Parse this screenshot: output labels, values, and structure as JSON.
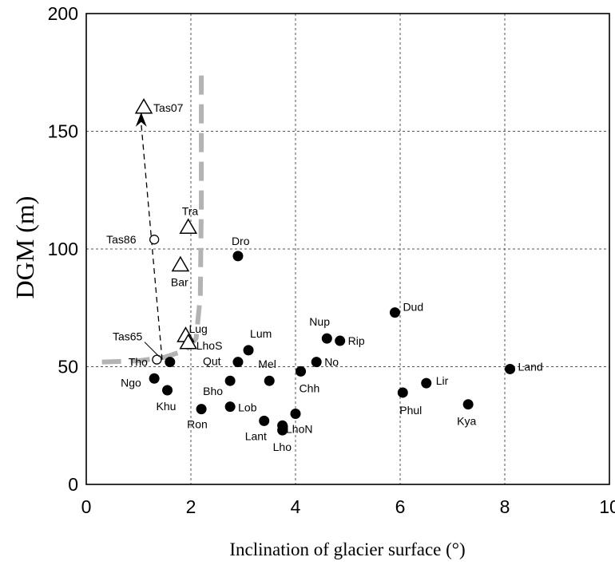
{
  "chart_data": {
    "type": "scatter",
    "xlabel": "Inclination of glacier surface (°)",
    "ylabel": "DGM (m)",
    "xlim": [
      0,
      10
    ],
    "ylim": [
      0,
      200
    ],
    "x_ticks": [
      "0",
      "2",
      "4",
      "6",
      "8",
      "10"
    ],
    "y_ticks": [
      "0",
      "50",
      "100",
      "150",
      "200"
    ],
    "grid": true,
    "series": [
      {
        "marker": "filled-circle",
        "points": [
          {
            "label": "Dro",
            "x": 2.9,
            "y": 97
          },
          {
            "label": "Dud",
            "x": 5.9,
            "y": 73
          },
          {
            "label": "Nup",
            "x": 4.6,
            "y": 62
          },
          {
            "label": "Rip",
            "x": 4.85,
            "y": 61
          },
          {
            "label": "Lum",
            "x": 3.1,
            "y": 57
          },
          {
            "label": "No",
            "x": 4.4,
            "y": 52
          },
          {
            "label": "Qut",
            "x": 2.9,
            "y": 52
          },
          {
            "label": "Tho",
            "x": 1.6,
            "y": 52
          },
          {
            "label": "Mel",
            "x": 3.5,
            "y": 44
          },
          {
            "label": "Chh",
            "x": 4.1,
            "y": 48
          },
          {
            "label": "Land",
            "x": 8.1,
            "y": 49
          },
          {
            "label": "Lir",
            "x": 6.5,
            "y": 43
          },
          {
            "label": "Ngo",
            "x": 1.3,
            "y": 45
          },
          {
            "label": "Bho",
            "x": 2.75,
            "y": 44
          },
          {
            "label": "Khu",
            "x": 1.55,
            "y": 40
          },
          {
            "label": "Phul",
            "x": 6.05,
            "y": 39
          },
          {
            "label": "Kya",
            "x": 7.3,
            "y": 34
          },
          {
            "label": "Lob",
            "x": 2.75,
            "y": 33
          },
          {
            "label": "Ron",
            "x": 2.2,
            "y": 32
          },
          {
            "label": "Lant",
            "x": 3.4,
            "y": 27
          },
          {
            "label": "LhoN",
            "x": 4.0,
            "y": 30
          },
          {
            "label": "",
            "x": 3.75,
            "y": 25
          },
          {
            "label": "Lho",
            "x": 3.75,
            "y": 23
          }
        ]
      },
      {
        "marker": "open-triangle",
        "points": [
          {
            "label": "Tas07",
            "x": 1.1,
            "y": 160
          },
          {
            "label": "Tra",
            "x": 1.95,
            "y": 109
          },
          {
            "label": "Bar",
            "x": 1.8,
            "y": 93
          },
          {
            "label": "Lug",
            "x": 1.9,
            "y": 63
          },
          {
            "label": "LhoS",
            "x": 1.95,
            "y": 60
          }
        ]
      },
      {
        "marker": "open-circle",
        "points": [
          {
            "label": "Tas86",
            "x": 1.3,
            "y": 104
          },
          {
            "label": "",
            "x": 1.35,
            "y": 53
          }
        ]
      }
    ],
    "annotations": [
      {
        "label": "Tas65",
        "x": 1.45,
        "y": 53
      }
    ],
    "threshold_curve": [
      {
        "x": 0.3,
        "y": 52
      },
      {
        "x": 1.0,
        "y": 52.5
      },
      {
        "x": 1.5,
        "y": 54
      },
      {
        "x": 1.9,
        "y": 57
      },
      {
        "x": 2.1,
        "y": 62
      },
      {
        "x": 2.18,
        "y": 80
      },
      {
        "x": 2.2,
        "y": 120
      },
      {
        "x": 2.2,
        "y": 175
      }
    ],
    "trend_arrow": {
      "from": {
        "x": 1.45,
        "y": 53
      },
      "to": {
        "x": 1.05,
        "y": 158
      }
    }
  }
}
